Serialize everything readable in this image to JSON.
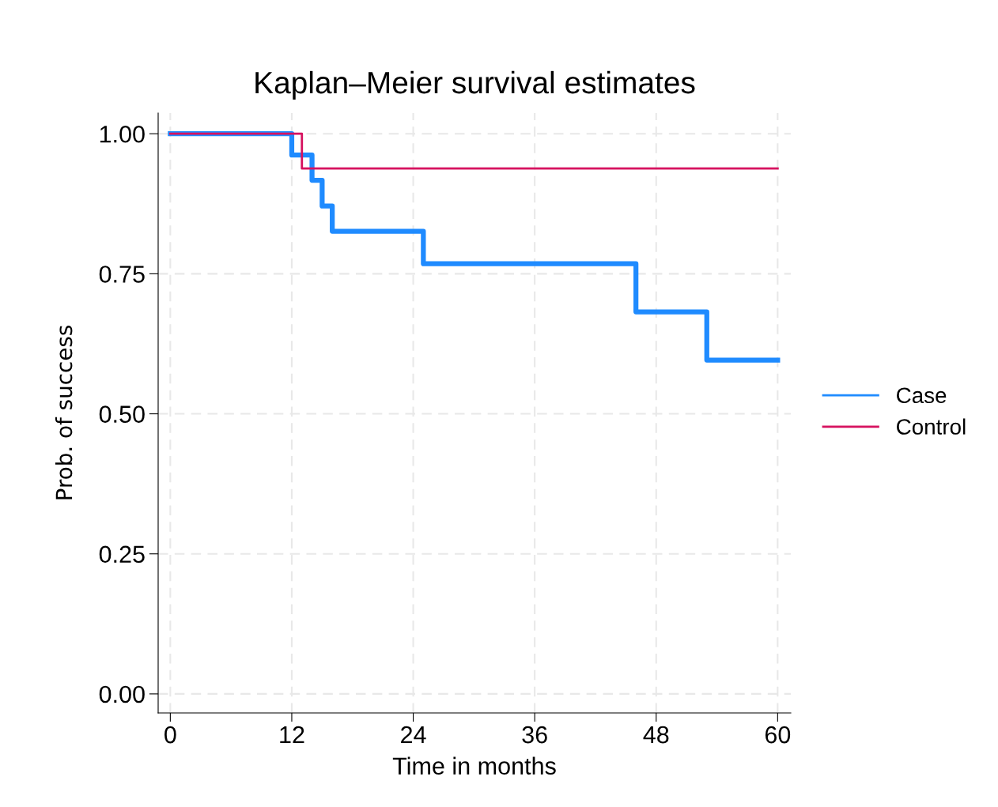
{
  "chart_data": {
    "type": "step",
    "title": "Kaplan–Meier survival estimates",
    "xlabel": "Time in months",
    "ylabel": "Prob. of success",
    "series": [
      {
        "name": "Case",
        "color": "#1f8bff",
        "x": [
          0,
          12,
          14,
          15,
          16,
          25,
          46,
          53,
          60
        ],
        "values": [
          1.0,
          0.962,
          0.917,
          0.871,
          0.826,
          0.768,
          0.682,
          0.596,
          0.596
        ]
      },
      {
        "name": "Control",
        "color": "#d6125f",
        "x": [
          0,
          13,
          60
        ],
        "values": [
          1.0,
          0.938,
          0.938
        ]
      }
    ],
    "xlim": [
      -1.2,
      61.3
    ],
    "xticks": [
      0,
      12,
      24,
      36,
      48,
      60
    ],
    "ylim": [
      -0.034,
      1.037
    ],
    "yticks": [
      {
        "value": 0,
        "label": "0.00"
      },
      {
        "value": 0.25,
        "label": "0.25"
      },
      {
        "value": 0.5,
        "label": "0.50"
      },
      {
        "value": 0.75,
        "label": "0.75"
      },
      {
        "value": 1,
        "label": "1.00"
      }
    ],
    "grid": true,
    "legend": "right",
    "line_style": "solid"
  }
}
